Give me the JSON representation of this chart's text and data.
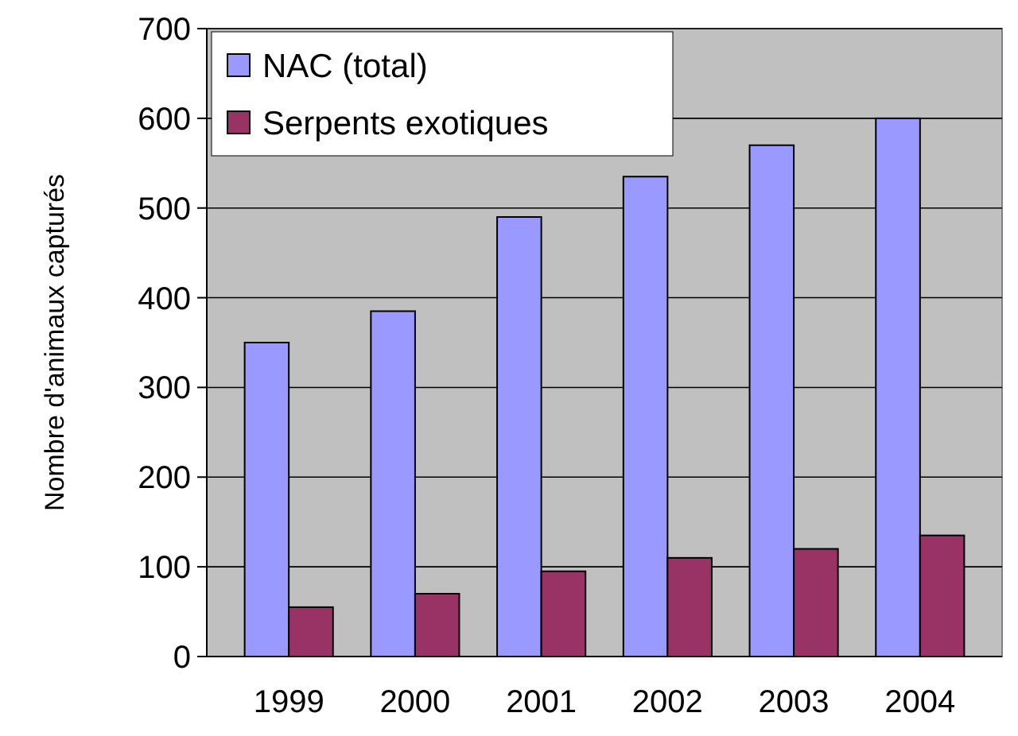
{
  "chart_data": {
    "type": "bar",
    "ylabel": "Nombre d'animaux capturés",
    "categories": [
      "1999",
      "2000",
      "2001",
      "2002",
      "2003",
      "2004"
    ],
    "series": [
      {
        "name": "NAC (total)",
        "color": "#9999ff",
        "values": [
          350,
          385,
          490,
          535,
          570,
          600
        ]
      },
      {
        "name": "Serpents exotiques",
        "color": "#993366",
        "values": [
          55,
          70,
          95,
          110,
          120,
          135
        ]
      }
    ],
    "ylim": [
      0,
      700
    ],
    "yticks": [
      0,
      100,
      200,
      300,
      400,
      500,
      600,
      700
    ],
    "grid": "y",
    "legend": "top left"
  }
}
